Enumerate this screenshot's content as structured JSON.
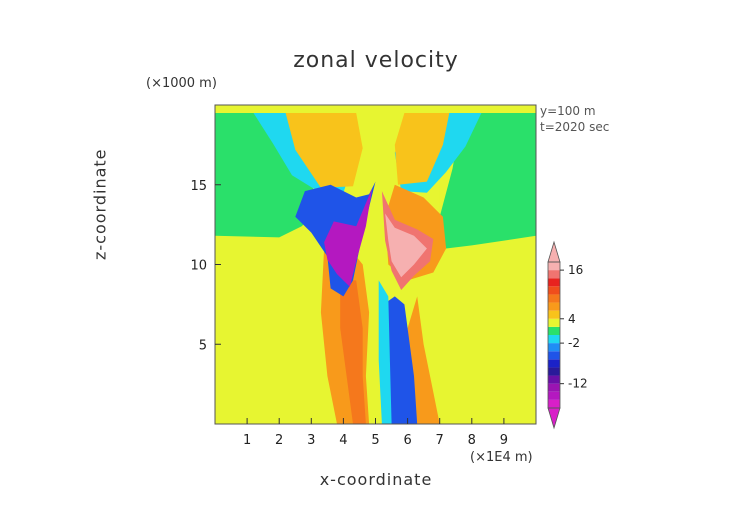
{
  "chart_data": {
    "type": "heatmap",
    "title": "zonal velocity",
    "xlabel": "x-coordinate",
    "ylabel": "z-coordinate",
    "x_unit": "(×1E4 m)",
    "y_unit": "(×1000 m)",
    "annotations": [
      "y=100 m",
      "t=2020 sec"
    ],
    "xlim": [
      0,
      10
    ],
    "ylim": [
      0,
      20
    ],
    "x_ticks": [
      1,
      2,
      3,
      4,
      5,
      6,
      7,
      8,
      9
    ],
    "y_ticks": [
      5,
      10,
      15
    ],
    "colorbar": {
      "tick_labels": [
        "16",
        "4",
        "-2",
        "-12"
      ],
      "tick_values": [
        16,
        4,
        -2,
        -12
      ],
      "levels": [
        {
          "min": -18,
          "max": -16,
          "color": "#d81fc8"
        },
        {
          "min": -16,
          "max": -14,
          "color": "#b418c0"
        },
        {
          "min": -14,
          "max": -12,
          "color": "#9a14b2"
        },
        {
          "min": -12,
          "max": -10,
          "color": "#6a10a8"
        },
        {
          "min": -10,
          "max": -8,
          "color": "#2a1a9a"
        },
        {
          "min": -8,
          "max": -6,
          "color": "#1b22c8"
        },
        {
          "min": -6,
          "max": -4,
          "color": "#1f54e8"
        },
        {
          "min": -4,
          "max": -2,
          "color": "#1f8ef5"
        },
        {
          "min": -2,
          "max": 0,
          "color": "#1fd8f0"
        },
        {
          "min": 0,
          "max": 2,
          "color": "#2ae06a"
        },
        {
          "min": 2,
          "max": 4,
          "color": "#e7f531"
        },
        {
          "min": 4,
          "max": 6,
          "color": "#f8c31b"
        },
        {
          "min": 6,
          "max": 8,
          "color": "#f89a1b"
        },
        {
          "min": 8,
          "max": 10,
          "color": "#f5781c"
        },
        {
          "min": 10,
          "max": 12,
          "color": "#f04e1c"
        },
        {
          "min": 12,
          "max": 14,
          "color": "#e8231f"
        },
        {
          "min": 14,
          "max": 16,
          "color": "#f07470"
        },
        {
          "min": 16,
          "max": 18,
          "color": "#f6b0b0"
        }
      ]
    },
    "contours": [
      {
        "level": "yellow",
        "color": "#e7f531",
        "points": [
          [
            0,
            0
          ],
          [
            10,
            0
          ],
          [
            10,
            11.8
          ],
          [
            8,
            11
          ],
          [
            7.4,
            10.6
          ],
          [
            7,
            12
          ],
          [
            7,
            16
          ],
          [
            6.7,
            19.5
          ],
          [
            3.7,
            19.5
          ],
          [
            3.2,
            16
          ],
          [
            2.8,
            12.5
          ],
          [
            2,
            11.6
          ],
          [
            0,
            11.8
          ]
        ]
      },
      {
        "level": "green-left",
        "color": "#2ae06a",
        "points": [
          [
            0,
            11.8
          ],
          [
            2,
            11.7
          ],
          [
            2.7,
            12.4
          ],
          [
            3,
            13
          ],
          [
            3.1,
            16
          ],
          [
            2.6,
            19.5
          ],
          [
            0,
            19.5
          ]
        ]
      },
      {
        "level": "green-right",
        "color": "#2ae06a",
        "points": [
          [
            10,
            11.8
          ],
          [
            8,
            11.2
          ],
          [
            7.2,
            11
          ],
          [
            7,
            13
          ],
          [
            7.4,
            16
          ],
          [
            7.7,
            19.5
          ],
          [
            10,
            19.5
          ]
        ]
      },
      {
        "level": "cyan-left",
        "color": "#1fd8f0",
        "points": [
          [
            1.2,
            19.5
          ],
          [
            1.8,
            17.6
          ],
          [
            2.4,
            15.6
          ],
          [
            3.2,
            14.6
          ],
          [
            4,
            14.5
          ],
          [
            4.4,
            17
          ],
          [
            3.7,
            19.5
          ]
        ]
      },
      {
        "level": "cyan-right",
        "color": "#1fd8f0",
        "points": [
          [
            8.3,
            19.5
          ],
          [
            7.8,
            17.4
          ],
          [
            7.2,
            15.8
          ],
          [
            6.6,
            14.5
          ],
          [
            5.8,
            14.6
          ],
          [
            5.6,
            17
          ],
          [
            6.2,
            19.5
          ]
        ]
      },
      {
        "level": "orange-left-high",
        "color": "#f8c31b",
        "points": [
          [
            2.2,
            19.5
          ],
          [
            2.5,
            17.2
          ],
          [
            3.3,
            14.8
          ],
          [
            4.3,
            14.9
          ],
          [
            4.6,
            17.3
          ],
          [
            4.4,
            19.5
          ]
        ]
      },
      {
        "level": "orange-right-high",
        "color": "#f8c31b",
        "points": [
          [
            7.3,
            19.5
          ],
          [
            7.1,
            17.5
          ],
          [
            6.6,
            15.2
          ],
          [
            5.7,
            15
          ],
          [
            5.6,
            17.5
          ],
          [
            5.9,
            19.5
          ]
        ]
      },
      {
        "level": "orange-right-mid",
        "color": "#f89a1b",
        "points": [
          [
            5.6,
            15
          ],
          [
            6.5,
            14.2
          ],
          [
            7.1,
            13
          ],
          [
            7.2,
            11
          ],
          [
            6.8,
            9.5
          ],
          [
            6,
            9
          ],
          [
            5.4,
            10
          ],
          [
            5.3,
            13
          ]
        ]
      },
      {
        "level": "orange-left-column",
        "color": "#f89a1b",
        "points": [
          [
            3.4,
            11
          ],
          [
            3.3,
            7
          ],
          [
            3.5,
            3
          ],
          [
            3.8,
            0
          ],
          [
            4.8,
            0
          ],
          [
            4.7,
            3
          ],
          [
            4.8,
            7
          ],
          [
            4.6,
            10
          ],
          [
            4,
            11.5
          ]
        ]
      },
      {
        "level": "deep-orange-left-column",
        "color": "#f5781c",
        "points": [
          [
            3.9,
            9
          ],
          [
            3.9,
            6
          ],
          [
            4.1,
            3
          ],
          [
            4.3,
            0
          ],
          [
            4.7,
            0
          ],
          [
            4.6,
            3
          ],
          [
            4.6,
            6
          ],
          [
            4.4,
            9
          ]
        ]
      },
      {
        "level": "orange-right-column",
        "color": "#f89a1b",
        "points": [
          [
            6.3,
            8
          ],
          [
            6.5,
            5
          ],
          [
            6.8,
            2
          ],
          [
            7,
            0
          ],
          [
            6.2,
            0
          ],
          [
            6.1,
            3
          ],
          [
            6,
            6
          ]
        ]
      },
      {
        "level": "blue-left-lobe",
        "color": "#1f54e8",
        "points": [
          [
            2.5,
            13
          ],
          [
            2.8,
            14.6
          ],
          [
            3.6,
            15
          ],
          [
            4.4,
            14.2
          ],
          [
            4.8,
            14.4
          ],
          [
            5,
            15.2
          ],
          [
            4.6,
            12
          ],
          [
            4.3,
            9
          ],
          [
            4,
            8
          ],
          [
            3.6,
            8.5
          ],
          [
            3.5,
            10.5
          ],
          [
            3,
            12
          ]
        ]
      },
      {
        "level": "magenta-left-core",
        "color": "#b418c0",
        "points": [
          [
            3.4,
            11.4
          ],
          [
            3.7,
            12.7
          ],
          [
            4.4,
            12.4
          ],
          [
            4.9,
            14.8
          ],
          [
            4.7,
            12.4
          ],
          [
            4.4,
            10.2
          ],
          [
            4.2,
            8.6
          ],
          [
            3.8,
            9.4
          ],
          [
            3.5,
            10.3
          ]
        ]
      },
      {
        "level": "salmon-right-core",
        "color": "#f07470",
        "points": [
          [
            5.2,
            14.6
          ],
          [
            5.6,
            12.8
          ],
          [
            6.3,
            12.2
          ],
          [
            6.8,
            11.6
          ],
          [
            6.7,
            10.2
          ],
          [
            6.2,
            9.3
          ],
          [
            5.8,
            8.4
          ],
          [
            5.5,
            9.6
          ],
          [
            5.3,
            11.5
          ]
        ]
      },
      {
        "level": "pink-right-core",
        "color": "#f6b0b0",
        "points": [
          [
            5.3,
            13.2
          ],
          [
            5.6,
            12.3
          ],
          [
            6.2,
            11.8
          ],
          [
            6.6,
            11
          ],
          [
            6.2,
            10
          ],
          [
            5.8,
            9.2
          ],
          [
            5.5,
            10.2
          ],
          [
            5.4,
            11.5
          ]
        ]
      },
      {
        "level": "blue-center-column",
        "color": "#1f54e8",
        "points": [
          [
            5.25,
            7.5
          ],
          [
            5.4,
            4
          ],
          [
            5.4,
            0
          ],
          [
            6.3,
            0
          ],
          [
            6.2,
            3
          ],
          [
            6,
            6
          ],
          [
            5.9,
            7.5
          ],
          [
            5.6,
            8
          ]
        ]
      },
      {
        "level": "cyan-center-column",
        "color": "#1fd8f0",
        "points": [
          [
            5.1,
            9
          ],
          [
            5.1,
            4
          ],
          [
            5.2,
            0
          ],
          [
            5.5,
            0
          ],
          [
            5.45,
            4
          ],
          [
            5.4,
            8
          ]
        ]
      }
    ]
  }
}
